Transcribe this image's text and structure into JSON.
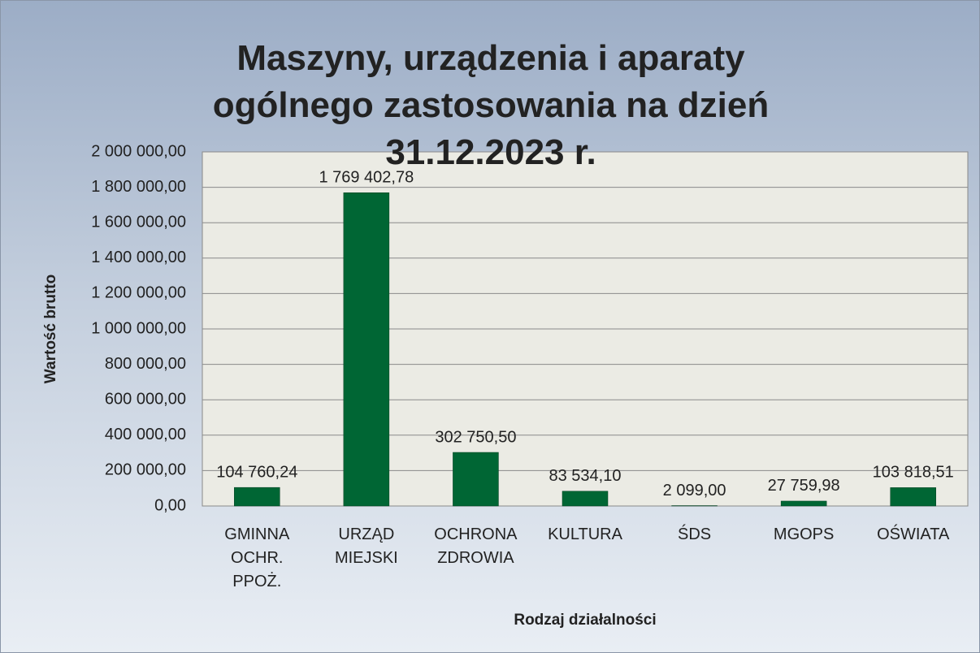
{
  "chart_data": {
    "type": "bar",
    "title": "Maszyny, urządzenia i aparaty ogólnego zastosowania na dzień 31.12.2023 r.",
    "x_label": "Rodzaj działalności",
    "y_label": "Wartość brutto",
    "categories": [
      "GMINNA OCHR. PPOŻ.",
      "URZĄD MIEJSKI",
      "OCHRONA ZDROWIA",
      "KULTURA",
      "ŚDS",
      "MGOPS",
      "OŚWIATA"
    ],
    "values": [
      104760.24,
      1769402.78,
      302750.5,
      83534.1,
      2099.0,
      27759.98,
      103818.51
    ],
    "value_labels": [
      "104 760,24",
      "1 769 402,78",
      "302 750,50",
      "83 534,10",
      "2 099,00",
      "27 759,98",
      "103 818,51"
    ],
    "color": "#006634",
    "ylim": [
      0,
      2000000
    ],
    "yticks": [
      {
        "value": 0,
        "label": "0,00"
      },
      {
        "value": 200000,
        "label": "200 000,00"
      },
      {
        "value": 400000,
        "label": "400 000,00"
      },
      {
        "value": 600000,
        "label": "600 000,00"
      },
      {
        "value": 800000,
        "label": "800 000,00"
      },
      {
        "value": 1000000,
        "label": "1 000 000,00"
      },
      {
        "value": 1200000,
        "label": "1 200 000,00"
      },
      {
        "value": 1400000,
        "label": "1 400 000,00"
      },
      {
        "value": 1600000,
        "label": "1 600 000,00"
      },
      {
        "value": 1800000,
        "label": "1 800 000,00"
      },
      {
        "value": 2000000,
        "label": "2 000 000,00"
      }
    ],
    "grid": true
  }
}
